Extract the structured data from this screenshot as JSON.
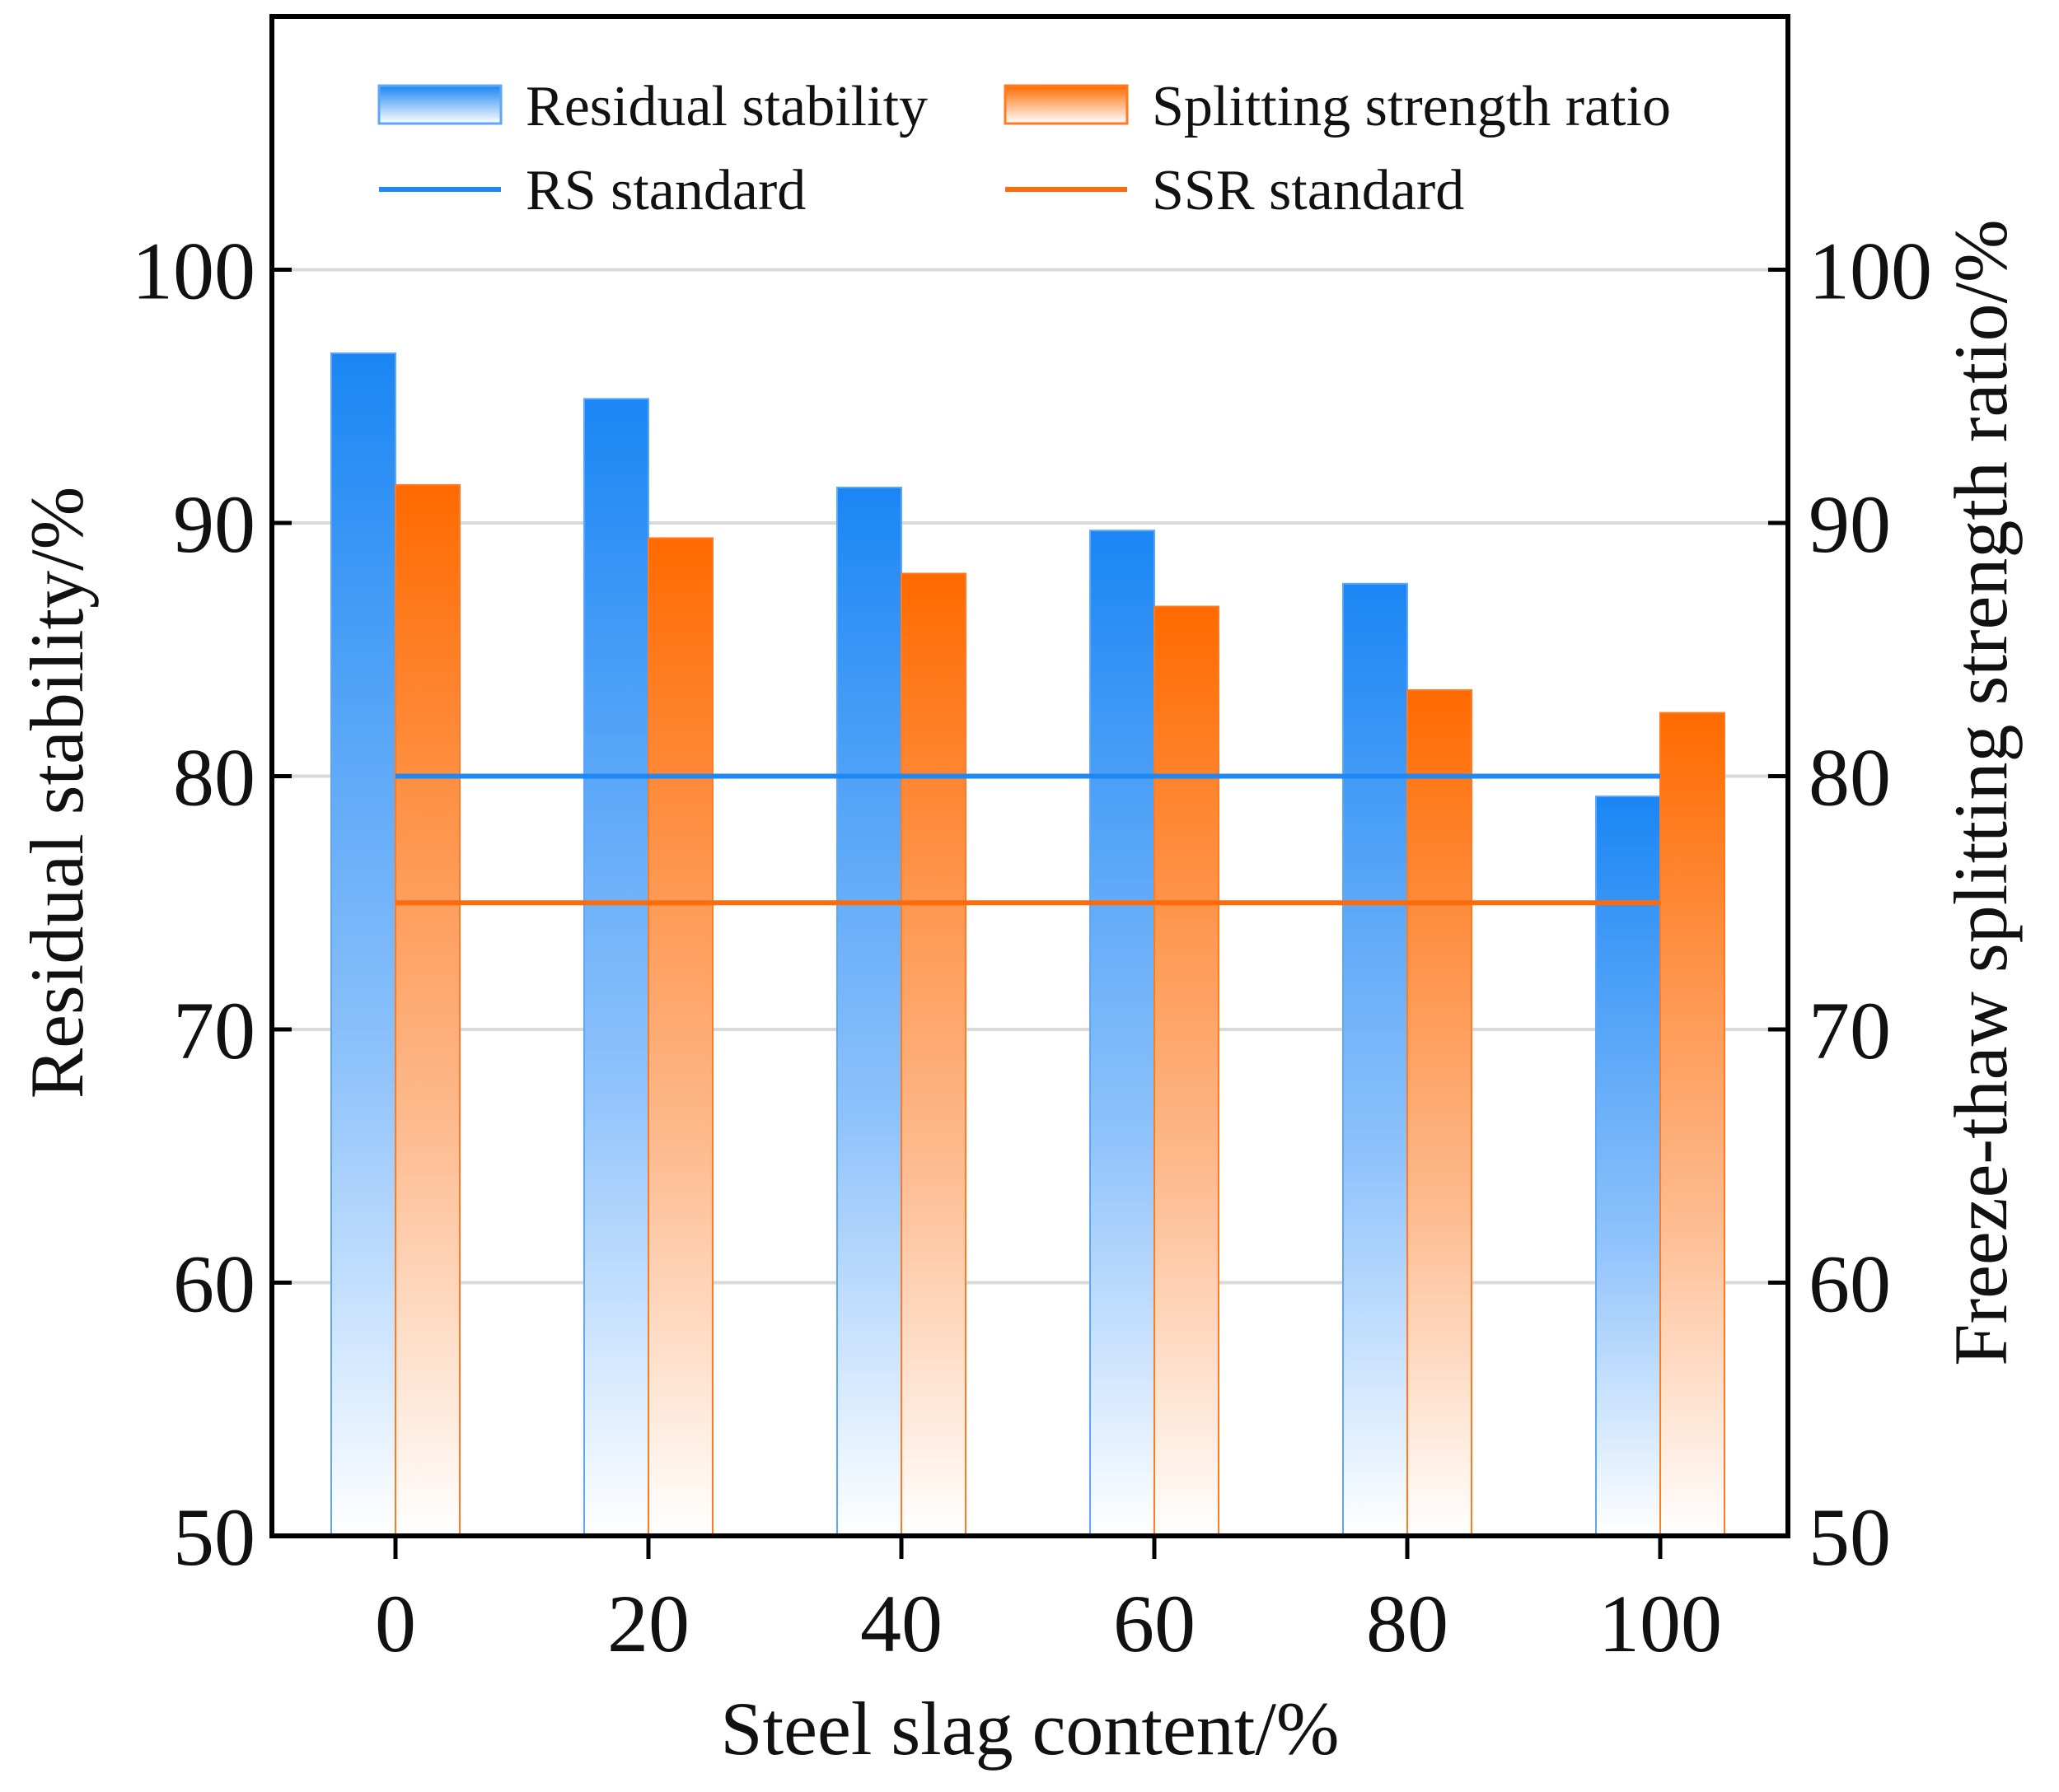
{
  "chart_data": {
    "type": "bar",
    "xlabel": "Steel slag content/%",
    "ylabel": "Residual stability/%",
    "y2label": "Freeze-thaw splitting strength ratio/%",
    "categories": [
      "0",
      "20",
      "40",
      "60",
      "80",
      "100"
    ],
    "ylim": [
      50,
      110
    ],
    "y2lim": [
      50,
      110
    ],
    "yticks": [
      "50",
      "60",
      "70",
      "80",
      "90",
      "100"
    ],
    "y2ticks": [
      "50",
      "60",
      "70",
      "80",
      "90",
      "100"
    ],
    "grid": true,
    "legend_position": "top",
    "series": [
      {
        "name": "Residual stability",
        "axis": "left",
        "color": "#1e88f5",
        "values": [
          96.7,
          94.9,
          91.4,
          89.7,
          87.6,
          79.2
        ]
      },
      {
        "name": "Splitting strength ratio",
        "axis": "right",
        "color": "#ff6a0a",
        "values": [
          91.5,
          89.4,
          88.0,
          86.7,
          83.4,
          82.5
        ]
      }
    ],
    "reference_lines": [
      {
        "name": "RS standard",
        "value": 80,
        "color": "#1e88f5"
      },
      {
        "name": "SSR standard",
        "value": 75,
        "color": "#ff6a0a"
      }
    ]
  }
}
